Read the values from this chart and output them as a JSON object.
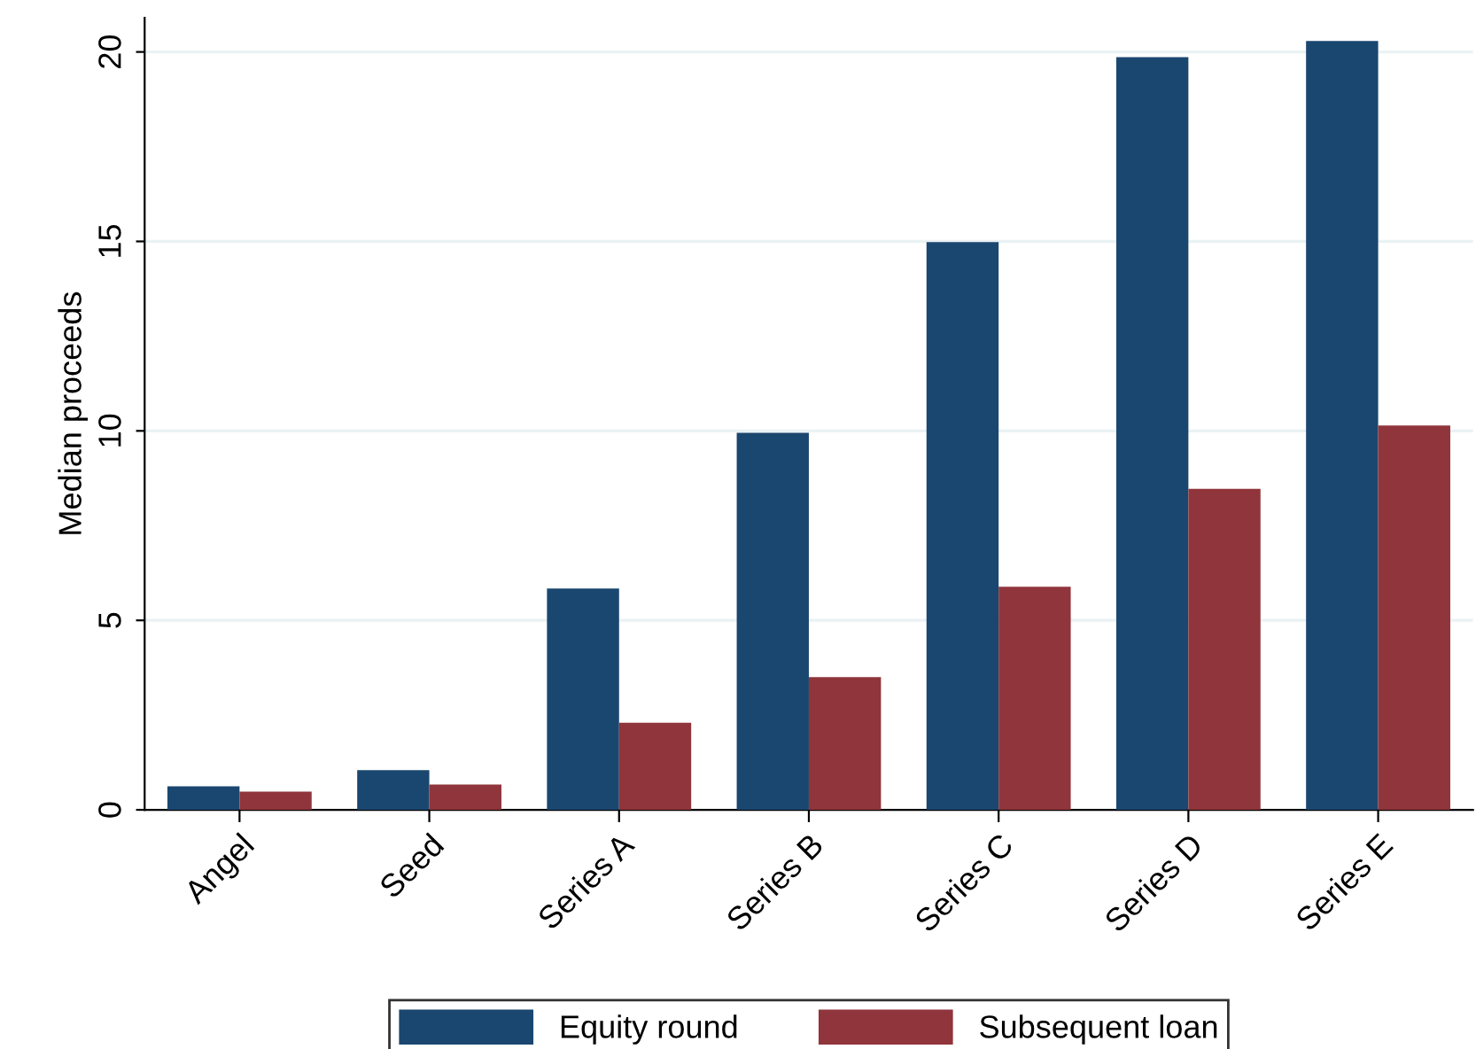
{
  "chart_data": {
    "type": "bar",
    "ylabel": "Median proceeds",
    "categories": [
      "Angel",
      "Seed",
      "Series A",
      "Series B",
      "Series C",
      "Series D",
      "Series E"
    ],
    "series": [
      {
        "name": "Equity round",
        "color": "#1a476f",
        "values": [
          0.62,
          1.05,
          5.84,
          9.95,
          14.98,
          19.86,
          20.29
        ]
      },
      {
        "name": "Subsequent loan",
        "color": "#90353b",
        "values": [
          0.48,
          0.67,
          2.3,
          3.5,
          5.89,
          8.47,
          10.14
        ]
      }
    ],
    "ylim": [
      0,
      20.9
    ],
    "yticks": [
      0,
      5,
      10,
      15,
      20
    ],
    "grid": "y",
    "legend": "bottom"
  }
}
